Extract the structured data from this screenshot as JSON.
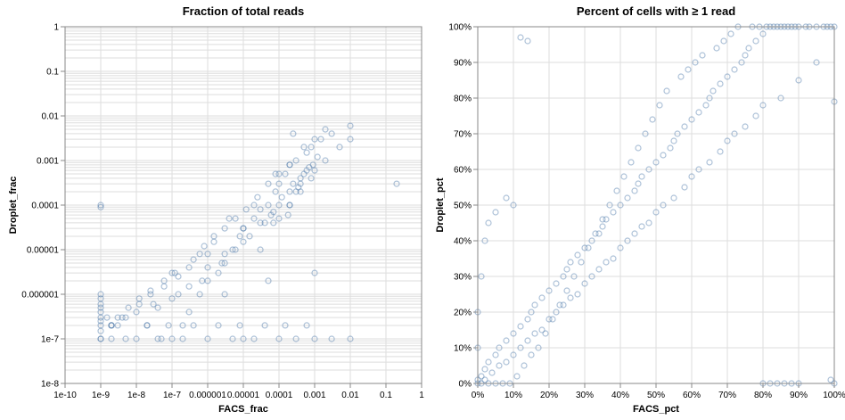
{
  "colors": {
    "point": "#4c78a8",
    "grid": "#dddddd",
    "axis": "#888888"
  },
  "chart_data": [
    {
      "type": "scatter",
      "title": "Fraction of total reads",
      "xlabel": "FACS_frac",
      "ylabel": "Droplet_frac",
      "xscale": "log",
      "yscale": "log",
      "xlim": [
        1e-10,
        1
      ],
      "ylim": [
        1e-08,
        1
      ],
      "grid": true,
      "x_ticks": [
        "1e-10",
        "1e-9",
        "1e-8",
        "1e-7",
        "0.000001",
        "0.00001",
        "0.0001",
        "0.001",
        "0.01",
        "0.1",
        "1"
      ],
      "y_ticks": [
        "1e-8",
        "1e-7",
        "0.000001",
        "0.00001",
        "0.0001",
        "0.001",
        "0.01",
        "0.1",
        "1"
      ],
      "points_x": [
        1e-09,
        1e-09,
        1e-09,
        1e-09,
        2e-09,
        3e-09,
        5e-09,
        1e-08,
        2e-08,
        4e-08,
        1e-07,
        2e-07,
        3e-07,
        6e-07,
        1e-06,
        2e-06,
        3e-06,
        5e-06,
        8e-06,
        1e-05,
        2e-05,
        3e-05,
        5e-05,
        8e-05,
        0.0001,
        0.00015,
        0.0002,
        0.0003,
        0.0005,
        0.0008,
        0.001,
        0.002,
        0.01,
        0.2,
        1e-09,
        5e-08,
        2e-07,
        1e-06,
        5e-06,
        2e-05,
        0.0001,
        0.0003,
        0.001,
        0.003,
        0.01,
        2e-08,
        2e-09,
        8e-08,
        4e-07,
        2e-06,
        8e-06,
        4e-05,
        0.00015,
        0.0006,
        3e-09,
        1e-08,
        3e-08,
        1e-07,
        3e-07,
        1e-06,
        3e-06,
        1e-05,
        3e-05,
        0.0001,
        0.0002,
        0.0004,
        0.0006,
        0.0009,
        1e-09,
        1e-09,
        1e-09,
        4e-09,
        4e-08,
        1.5e-07,
        7e-07,
        2.5e-06,
        6e-06,
        1.5e-05,
        4e-05,
        7e-05,
        0.00012,
        0.00025,
        0.0007,
        0.0012,
        1e-09,
        1e-09,
        1e-09,
        1e-09,
        1e-09,
        1.5e-09,
        2e-09,
        6e-09,
        1.2e-08,
        2.5e-08,
        6e-08,
        1.2e-07,
        4e-07,
        8e-07,
        1.5e-06,
        4e-06,
        2e-09,
        5e-09,
        1.2e-08,
        2.5e-08,
        6e-08,
        1.5e-07,
        3e-07,
        6e-07,
        1.5e-06,
        3e-06,
        6e-06,
        1.2e-05,
        2.5e-05,
        5e-05,
        0.0001,
        0.0002,
        0.0006,
        0.0015,
        0.003,
        0.0001,
        0.0002,
        0.0004,
        0.0008,
        0.001,
        0.002,
        0.005,
        0.01,
        0.00025,
        5e-05,
        1e-05,
        3e-06,
        0.001,
        1e-07,
        1e-05,
        1e-06,
        3e-05,
        6e-05,
        0.0002,
        0.0004,
        8e-05,
        0.0003,
        0.0005,
        2e-05,
        7e-05,
        0.00018,
        0.00035
      ],
      "points_y": [
        0.0001,
        9e-05,
        3e-07,
        1e-07,
        1e-07,
        2e-07,
        1e-07,
        1e-07,
        2e-07,
        1e-07,
        1e-07,
        2e-07,
        4e-07,
        1e-06,
        2e-06,
        3e-06,
        5e-06,
        1e-05,
        2e-05,
        3e-05,
        5e-05,
        8e-05,
        0.0001,
        0.0002,
        0.0003,
        0.0005,
        0.0008,
        0.001,
        0.002,
        0.002,
        0.003,
        0.005,
        0.006,
        0.0003,
        1e-07,
        1e-07,
        1e-07,
        1e-07,
        1e-07,
        1e-07,
        1e-07,
        1e-07,
        1e-07,
        1e-07,
        1e-07,
        2e-07,
        2e-07,
        2e-07,
        2e-07,
        2e-07,
        2e-07,
        2e-07,
        2e-07,
        2e-07,
        3e-07,
        4e-07,
        6e-07,
        8e-07,
        1.5e-06,
        4e-06,
        8e-06,
        1.5e-05,
        4e-05,
        0.0001,
        0.0002,
        0.0004,
        0.0006,
        0.0008,
        1e-06,
        8e-07,
        6e-07,
        3e-07,
        5e-07,
        1e-06,
        2e-06,
        5e-06,
        1e-05,
        2e-05,
        4e-05,
        7e-05,
        0.00015,
        0.0003,
        0.0007,
        0.0012,
        5e-07,
        4e-07,
        2e-07,
        2.5e-07,
        1.5e-07,
        3e-07,
        2e-07,
        5e-07,
        8e-07,
        1.2e-06,
        2e-06,
        3e-06,
        6e-06,
        1.2e-05,
        2e-05,
        5e-05,
        2e-07,
        3e-07,
        6e-07,
        1e-06,
        1.5e-06,
        2.5e-06,
        4e-06,
        8e-06,
        1.5e-05,
        3e-05,
        5e-05,
        8e-05,
        0.00015,
        0.0003,
        0.0005,
        0.0008,
        0.0015,
        0.003,
        0.004,
        5e-05,
        0.0001,
        0.0002,
        0.0004,
        0.0006,
        0.001,
        0.002,
        0.003,
        0.004,
        2e-06,
        1e-07,
        1e-06,
        3e-06,
        3e-06,
        3e-05,
        8e-06,
        1e-05,
        6e-05,
        0.0001,
        0.0003,
        0.0005,
        0.0002,
        0.0005,
        0.0001,
        4e-05,
        6e-05,
        0.00025
      ]
    },
    {
      "type": "scatter",
      "title": "Percent of cells with ≥ 1 read",
      "xlabel": "FACS_pct",
      "ylabel": "Droplet_pct",
      "xlim": [
        0,
        100
      ],
      "ylim": [
        0,
        100
      ],
      "grid": true,
      "x_ticks": [
        "0%",
        "10%",
        "20%",
        "30%",
        "40%",
        "50%",
        "60%",
        "70%",
        "80%",
        "90%",
        "100%"
      ],
      "y_ticks": [
        "0%",
        "10%",
        "20%",
        "30%",
        "40%",
        "50%",
        "60%",
        "70%",
        "80%",
        "90%",
        "100%"
      ],
      "points_x": [
        1,
        2,
        3,
        5,
        6,
        8,
        10,
        12,
        14,
        15,
        16,
        18,
        20,
        22,
        24,
        25,
        26,
        28,
        30,
        32,
        34,
        35,
        36,
        38,
        40,
        42,
        44,
        45,
        46,
        48,
        50,
        52,
        54,
        55,
        56,
        58,
        60,
        62,
        64,
        65,
        66,
        68,
        70,
        72,
        74,
        75,
        76,
        78,
        80,
        82,
        84,
        85,
        86,
        88,
        90,
        92,
        95,
        98,
        100,
        2,
        4,
        6,
        8,
        10,
        12,
        14,
        16,
        18,
        20,
        22,
        24,
        26,
        28,
        30,
        32,
        34,
        36,
        38,
        40,
        42,
        44,
        46,
        48,
        50,
        52,
        55,
        58,
        60,
        62,
        65,
        68,
        70,
        72,
        75,
        78,
        80,
        85,
        90,
        95,
        100,
        12,
        14,
        8,
        10,
        5,
        3,
        2,
        1,
        0,
        0,
        0,
        0,
        1,
        3,
        5,
        7,
        9,
        11,
        13,
        15,
        17,
        19,
        21,
        23,
        25,
        27,
        29,
        31,
        33,
        35,
        37,
        39,
        41,
        43,
        45,
        47,
        49,
        51,
        53,
        57,
        59,
        61,
        63,
        67,
        69,
        71,
        73,
        77,
        79,
        81,
        83,
        87,
        89,
        93,
        97,
        99,
        80,
        82,
        84,
        86,
        88,
        90,
        100,
        99
      ],
      "points_y": [
        2,
        4,
        6,
        8,
        10,
        12,
        14,
        16,
        18,
        20,
        22,
        24,
        26,
        28,
        30,
        32,
        34,
        36,
        38,
        40,
        42,
        44,
        46,
        48,
        50,
        52,
        54,
        56,
        58,
        60,
        62,
        64,
        66,
        68,
        70,
        72,
        74,
        76,
        78,
        80,
        82,
        84,
        86,
        88,
        90,
        92,
        94,
        96,
        98,
        100,
        100,
        100,
        100,
        100,
        100,
        100,
        100,
        100,
        100,
        1,
        3,
        5,
        6,
        8,
        10,
        12,
        14,
        15,
        18,
        20,
        22,
        24,
        25,
        28,
        30,
        32,
        34,
        35,
        38,
        40,
        42,
        44,
        45,
        48,
        50,
        52,
        55,
        58,
        60,
        62,
        65,
        68,
        70,
        72,
        75,
        78,
        80,
        85,
        90,
        79,
        97,
        96,
        52,
        50,
        48,
        45,
        40,
        30,
        20,
        10,
        1,
        0,
        0,
        0,
        0,
        0,
        0,
        2,
        5,
        8,
        10,
        14,
        18,
        22,
        26,
        30,
        34,
        38,
        42,
        46,
        50,
        54,
        58,
        62,
        66,
        70,
        74,
        78,
        82,
        86,
        88,
        90,
        92,
        94,
        96,
        98,
        100,
        100,
        100,
        100,
        100,
        100,
        100,
        100,
        100,
        100,
        0,
        0,
        0,
        0,
        0,
        0,
        0,
        1
      ]
    }
  ]
}
